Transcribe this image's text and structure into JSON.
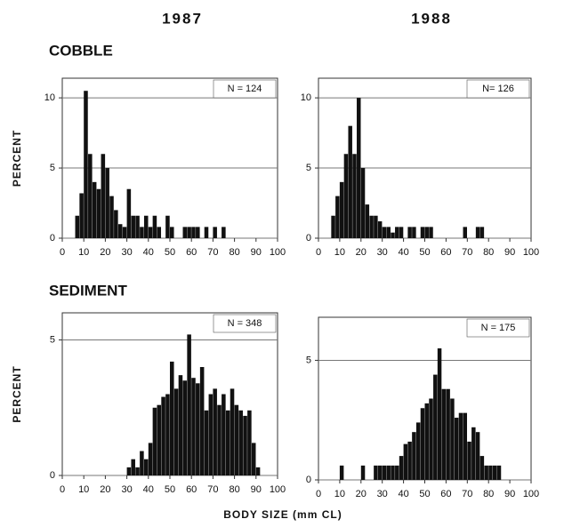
{
  "columns": [
    "1987",
    "1988"
  ],
  "rows": [
    "COBBLE",
    "SEDIMENT"
  ],
  "xlabel": "BODY SIZE (mm CL)",
  "chart_data": [
    {
      "type": "histogram",
      "ylabel": "PERCENT",
      "annotation": "N = 124",
      "color": "#111111",
      "grid": true,
      "bins": [
        0,
        2,
        4,
        6,
        8,
        10,
        12,
        14,
        16,
        18,
        20,
        22,
        24,
        26,
        28,
        30,
        32,
        34,
        36,
        38,
        40,
        42,
        44,
        46,
        48,
        50,
        52,
        54,
        56,
        58,
        60,
        62,
        64,
        66,
        68,
        70,
        72,
        74,
        76,
        78,
        80,
        82,
        84,
        86,
        88,
        90,
        92,
        94,
        96,
        98,
        100
      ],
      "values": [
        0,
        0,
        0,
        1.6,
        3.2,
        10.5,
        6,
        4,
        3.5,
        6,
        5,
        3,
        2,
        1,
        0.8,
        3.5,
        1.6,
        1.6,
        0.8,
        1.6,
        0.8,
        1.6,
        0.8,
        0,
        1.6,
        0.8,
        0,
        0,
        0.8,
        0.8,
        0.8,
        0.8,
        0,
        0.8,
        0,
        0.8,
        0,
        0.8,
        0,
        0,
        0,
        0,
        0,
        0,
        0,
        0,
        0,
        0,
        0,
        0
      ],
      "xlim": [
        0,
        100
      ],
      "xticks": [
        0,
        10,
        20,
        30,
        40,
        50,
        60,
        70,
        80,
        90,
        100
      ],
      "ylim": [
        0,
        11.4
      ],
      "yticks": [
        0,
        5,
        10
      ]
    },
    {
      "type": "histogram",
      "annotation": "N= 126",
      "color": "#111111",
      "grid": true,
      "bins": [
        0,
        2,
        4,
        6,
        8,
        10,
        12,
        14,
        16,
        18,
        20,
        22,
        24,
        26,
        28,
        30,
        32,
        34,
        36,
        38,
        40,
        42,
        44,
        46,
        48,
        50,
        52,
        54,
        56,
        58,
        60,
        62,
        64,
        66,
        68,
        70,
        72,
        74,
        76,
        78,
        80,
        82,
        84,
        86,
        88,
        90,
        92,
        94,
        96,
        98,
        100
      ],
      "values": [
        0,
        0,
        0,
        1.6,
        3,
        4,
        6,
        8,
        6,
        10,
        5,
        2.4,
        1.6,
        1.6,
        1.2,
        0.8,
        0.8,
        0.4,
        0.8,
        0.8,
        0,
        0.8,
        0.8,
        0,
        0.8,
        0.8,
        0.8,
        0,
        0,
        0,
        0,
        0,
        0,
        0,
        0.8,
        0,
        0,
        0.8,
        0.8,
        0,
        0,
        0,
        0,
        0,
        0,
        0,
        0,
        0,
        0,
        0
      ],
      "xlim": [
        0,
        100
      ],
      "xticks": [
        0,
        10,
        20,
        30,
        40,
        50,
        60,
        70,
        80,
        90,
        100
      ],
      "ylim": [
        0,
        11.4
      ],
      "yticks": [
        0,
        5,
        10
      ]
    },
    {
      "type": "histogram",
      "ylabel": "PERCENT",
      "annotation": "N = 348",
      "color": "#111111",
      "grid": true,
      "bins": [
        0,
        2,
        4,
        6,
        8,
        10,
        12,
        14,
        16,
        18,
        20,
        22,
        24,
        26,
        28,
        30,
        32,
        34,
        36,
        38,
        40,
        42,
        44,
        46,
        48,
        50,
        52,
        54,
        56,
        58,
        60,
        62,
        64,
        66,
        68,
        70,
        72,
        74,
        76,
        78,
        80,
        82,
        84,
        86,
        88,
        90,
        92,
        94,
        96,
        98,
        100
      ],
      "values": [
        0,
        0,
        0,
        0,
        0,
        0,
        0,
        0,
        0,
        0,
        0,
        0,
        0,
        0,
        0,
        0.3,
        0.6,
        0.3,
        0.9,
        0.6,
        1.2,
        2.5,
        2.6,
        2.9,
        3,
        4.2,
        3.2,
        3.7,
        3.5,
        5.2,
        3.6,
        3.4,
        4,
        2.4,
        3,
        3.2,
        2.6,
        3,
        2.4,
        3.2,
        2.6,
        2.4,
        2.2,
        2.4,
        1.2,
        0.3,
        0,
        0,
        0,
        0
      ],
      "xlim": [
        0,
        100
      ],
      "xticks": [
        0,
        10,
        20,
        30,
        40,
        50,
        60,
        70,
        80,
        90,
        100
      ],
      "ylim": [
        0,
        6
      ],
      "yticks": [
        0,
        5
      ]
    },
    {
      "type": "histogram",
      "annotation": "N = 175",
      "color": "#111111",
      "grid": true,
      "bins": [
        0,
        2,
        4,
        6,
        8,
        10,
        12,
        14,
        16,
        18,
        20,
        22,
        24,
        26,
        28,
        30,
        32,
        34,
        36,
        38,
        40,
        42,
        44,
        46,
        48,
        50,
        52,
        54,
        56,
        58,
        60,
        62,
        64,
        66,
        68,
        70,
        72,
        74,
        76,
        78,
        80,
        82,
        84,
        86,
        88,
        90,
        92,
        94,
        96,
        98,
        100
      ],
      "values": [
        0,
        0,
        0,
        0,
        0,
        0.6,
        0,
        0,
        0,
        0,
        0.6,
        0,
        0,
        0.6,
        0.6,
        0.6,
        0.6,
        0.6,
        0.6,
        1,
        1.5,
        1.6,
        2,
        2.4,
        3,
        3.2,
        3.4,
        4.4,
        5.5,
        3.8,
        3.8,
        3.4,
        2.6,
        2.8,
        2.8,
        1.6,
        2.2,
        2,
        1,
        0.6,
        0.6,
        0.6,
        0.6,
        0,
        0,
        0,
        0,
        0,
        0,
        0
      ],
      "xlim": [
        0,
        100
      ],
      "xticks": [
        0,
        10,
        20,
        30,
        40,
        50,
        60,
        70,
        80,
        90,
        100
      ],
      "ylim": [
        0,
        6.8
      ],
      "yticks": [
        0,
        5
      ]
    }
  ]
}
